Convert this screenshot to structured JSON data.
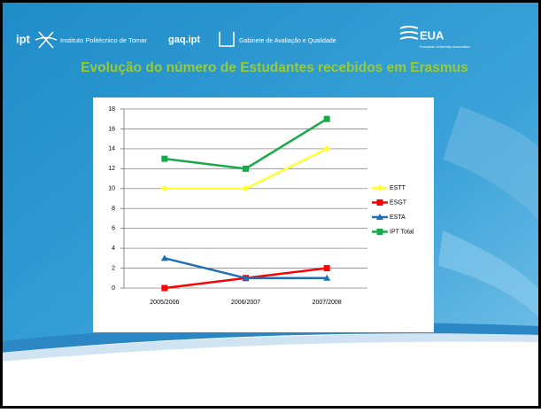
{
  "header": {
    "ipt": "ipt",
    "institution": "Instituto Politécnico de Tomar",
    "gaq": "gaq.ipt",
    "gabinete": "Gabinete de Avaliação e Qualidade",
    "eua": "EUA",
    "eua_sub": "European University Association"
  },
  "chart_data": {
    "type": "line",
    "title": "Evolução do número de Estudantes recebidos em Erasmus",
    "categories": [
      "2005/2006",
      "2006/2007",
      "2007/2008"
    ],
    "series": [
      {
        "name": "ESTT",
        "color": "#ffff33",
        "marker": "diamond",
        "values": [
          10,
          10,
          14
        ]
      },
      {
        "name": "ESGT",
        "color": "#ff0000",
        "marker": "square",
        "values": [
          0,
          1,
          2
        ]
      },
      {
        "name": "ESTA",
        "color": "#1f6fb5",
        "marker": "triangle",
        "values": [
          3,
          1,
          1
        ]
      },
      {
        "name": "IPT Total",
        "color": "#19a84a",
        "marker": "square",
        "values": [
          13,
          12,
          17
        ]
      }
    ],
    "ylim": [
      0,
      18
    ],
    "yticks": [
      0,
      2,
      4,
      6,
      8,
      10,
      12,
      14,
      16,
      18
    ],
    "grid": true,
    "legend": "right"
  }
}
